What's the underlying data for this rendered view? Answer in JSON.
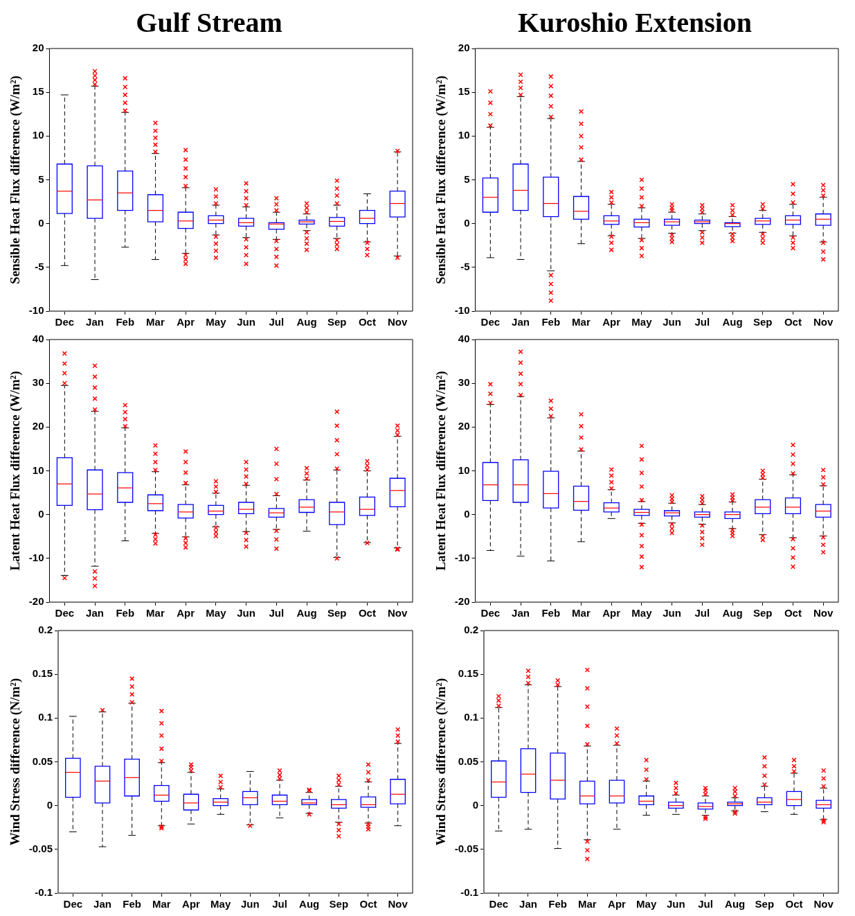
{
  "chart_data": [
    {
      "type": "box",
      "title": "Gulf Stream",
      "ylabel": "Sensible Heat Flux difference (W/m²)",
      "categories": [
        "Dec",
        "Jan",
        "Feb",
        "Mar",
        "Apr",
        "May",
        "Jun",
        "Jul",
        "Aug",
        "Sep",
        "Oct",
        "Nov"
      ],
      "color": "#0000ff",
      "marker": "cross",
      "ylim": [
        -10,
        20
      ],
      "yticks": [
        -10,
        -5,
        0,
        5,
        10,
        15,
        20
      ],
      "grid": false,
      "boxes": [
        {
          "low": -4.8,
          "q1": 1.15,
          "median": 3.7,
          "q3": 6.8,
          "high": 14.7
        },
        {
          "low": -6.4,
          "q1": 0.6,
          "median": 2.7,
          "q3": 6.6,
          "high": 15.7,
          "outliers": [
            15.9,
            16.4,
            16.9,
            17.4
          ]
        },
        {
          "low": -2.7,
          "q1": 1.5,
          "median": 3.5,
          "q3": 6.0,
          "high": 12.7,
          "outliers": [
            12.9,
            13.8,
            14.7,
            15.6,
            16.6
          ]
        },
        {
          "low": -4.1,
          "q1": 0.2,
          "median": 1.5,
          "q3": 3.3,
          "high": 8.0,
          "outliers": [
            8.2,
            9.0,
            9.8,
            10.6,
            11.5
          ]
        },
        {
          "low": -3.4,
          "q1": -0.55,
          "median": 0.3,
          "q3": 1.3,
          "high": 4.1,
          "outliers": [
            4.3,
            5.3,
            6.3,
            7.3,
            8.4,
            -3.6,
            -4.1,
            -4.6
          ]
        },
        {
          "low": -1.3,
          "q1": 0.0,
          "median": 0.4,
          "q3": 0.9,
          "high": 2.1,
          "outliers": [
            2.3,
            3.1,
            3.9,
            -1.5,
            -2.3,
            -3.1,
            -3.9
          ]
        },
        {
          "low": -1.6,
          "q1": -0.3,
          "median": 0.1,
          "q3": 0.6,
          "high": 1.9,
          "outliers": [
            2.1,
            2.9,
            3.7,
            4.6,
            -1.8,
            -2.7,
            -3.6,
            -4.6
          ]
        },
        {
          "low": -1.8,
          "q1": -0.65,
          "median": -0.05,
          "q3": 0.1,
          "high": 1.3,
          "outliers": [
            1.5,
            2.2,
            2.9,
            -2.0,
            -2.9,
            -3.8,
            -4.8
          ]
        },
        {
          "low": -0.8,
          "q1": -0.05,
          "median": 0.2,
          "q3": 0.4,
          "high": 1.1,
          "outliers": [
            1.3,
            1.8,
            2.3,
            -1.0,
            -1.7,
            -2.3,
            -3.0
          ]
        },
        {
          "low": -1.7,
          "q1": -0.3,
          "median": 0.25,
          "q3": 0.7,
          "high": 2.1,
          "outliers": [
            2.3,
            3.2,
            4.0,
            4.9,
            -1.9,
            -2.4,
            -2.9
          ]
        },
        {
          "low": -2.1,
          "q1": 0.0,
          "median": 0.6,
          "q3": 1.5,
          "high": 3.4,
          "outliers": [
            -2.2,
            -2.9,
            -3.6
          ]
        },
        {
          "low": -3.7,
          "q1": 0.75,
          "median": 2.3,
          "q3": 3.7,
          "high": 8.2,
          "outliers": [
            8.3,
            -3.9
          ]
        }
      ]
    },
    {
      "type": "box",
      "title": "Kuroshio Extension",
      "ylabel": "Sensible Heat Flux difference (W/m²)",
      "categories": [
        "Dec",
        "Jan",
        "Feb",
        "Mar",
        "Apr",
        "May",
        "Jun",
        "Jul",
        "Aug",
        "Sep",
        "Oct",
        "Nov"
      ],
      "color": "#0000ff",
      "marker": "cross",
      "ylim": [
        -10,
        20
      ],
      "yticks": [
        -10,
        -5,
        0,
        5,
        10,
        15,
        20
      ],
      "grid": false,
      "boxes": [
        {
          "low": -3.9,
          "q1": 1.3,
          "median": 3.0,
          "q3": 5.2,
          "high": 11.0,
          "outliers": [
            11.2,
            12.5,
            13.8,
            15.1
          ]
        },
        {
          "low": -4.1,
          "q1": 1.5,
          "median": 3.8,
          "q3": 6.8,
          "high": 14.5,
          "outliers": [
            14.7,
            15.5,
            16.2,
            17.0
          ]
        },
        {
          "low": -5.4,
          "q1": 0.8,
          "median": 2.3,
          "q3": 5.3,
          "high": 12.0,
          "outliers": [
            12.2,
            13.4,
            14.6,
            15.7,
            16.8,
            -5.9,
            -6.9,
            -7.9,
            -8.8
          ]
        },
        {
          "low": -2.3,
          "q1": 0.5,
          "median": 1.4,
          "q3": 3.1,
          "high": 7.1,
          "outliers": [
            7.3,
            8.7,
            10.0,
            11.4,
            12.8
          ]
        },
        {
          "low": -1.4,
          "q1": -0.1,
          "median": 0.3,
          "q3": 0.9,
          "high": 2.2,
          "outliers": [
            2.4,
            3.0,
            3.6,
            -1.5,
            -2.2,
            -3.0
          ]
        },
        {
          "low": -1.7,
          "q1": -0.4,
          "median": 0.1,
          "q3": 0.5,
          "high": 1.8,
          "outliers": [
            2.0,
            3.0,
            4.0,
            5.0,
            -1.9,
            -2.8,
            -3.7
          ]
        },
        {
          "low": -1.1,
          "q1": -0.2,
          "median": 0.2,
          "q3": 0.5,
          "high": 1.3,
          "outliers": [
            1.5,
            1.8,
            2.2,
            -1.3,
            -1.7,
            -2.1
          ]
        },
        {
          "low": -0.8,
          "q1": 0.0,
          "median": 0.2,
          "q3": 0.4,
          "high": 1.1,
          "outliers": [
            1.3,
            1.7,
            2.1,
            -1.0,
            -1.6,
            -2.2
          ]
        },
        {
          "low": -1.1,
          "q1": -0.35,
          "median": 0.0,
          "q3": 0.1,
          "high": 0.8,
          "outliers": [
            1.0,
            1.5,
            2.1,
            -1.2,
            -1.6,
            -2.0
          ]
        },
        {
          "low": -1.0,
          "q1": -0.1,
          "median": 0.3,
          "q3": 0.6,
          "high": 1.5,
          "outliers": [
            1.7,
            2.2,
            -1.2,
            -1.7,
            -2.2
          ]
        },
        {
          "low": -1.4,
          "q1": -0.1,
          "median": 0.4,
          "q3": 0.9,
          "high": 2.2,
          "outliers": [
            2.4,
            3.4,
            4.5,
            -1.6,
            -2.2,
            -2.8
          ]
        },
        {
          "low": -2.1,
          "q1": -0.2,
          "median": 0.5,
          "q3": 1.1,
          "high": 3.0,
          "outliers": [
            3.2,
            3.8,
            4.4,
            -2.2,
            -3.2,
            -4.1
          ]
        }
      ]
    },
    {
      "type": "box",
      "ylabel": "Latent Heat Flux difference (W/m²)",
      "categories": [
        "Dec",
        "Jan",
        "Feb",
        "Mar",
        "Apr",
        "May",
        "Jun",
        "Jul",
        "Aug",
        "Sep",
        "Oct",
        "Nov"
      ],
      "color": "#0000ff",
      "marker": "cross",
      "ylim": [
        -20,
        40
      ],
      "yticks": [
        -20,
        -10,
        0,
        10,
        20,
        30,
        40
      ],
      "grid": false,
      "boxes": [
        {
          "low": -13.9,
          "q1": 2.1,
          "median": 7.0,
          "q3": 13.0,
          "high": 29.5,
          "outliers": [
            30.0,
            32.3,
            34.5,
            36.8,
            -14.5
          ]
        },
        {
          "low": -11.8,
          "q1": 1.1,
          "median": 4.7,
          "q3": 10.2,
          "high": 23.6,
          "outliers": [
            24.0,
            26.5,
            29.0,
            31.5,
            34.0,
            -13.0,
            -14.6,
            -16.3
          ]
        },
        {
          "low": -6.0,
          "q1": 2.8,
          "median": 6.1,
          "q3": 9.6,
          "high": 19.8,
          "outliers": [
            20.2,
            21.8,
            23.4,
            25.0
          ]
        },
        {
          "low": -4.3,
          "q1": 0.9,
          "median": 2.5,
          "q3": 4.5,
          "high": 9.8,
          "outliers": [
            10.2,
            12.0,
            13.9,
            15.8,
            -4.6,
            -5.6,
            -6.6
          ]
        },
        {
          "low": -5.1,
          "q1": -0.8,
          "median": 0.6,
          "q3": 2.3,
          "high": 6.8,
          "outliers": [
            7.2,
            9.6,
            12.0,
            14.4,
            -5.4,
            -6.5,
            -7.5
          ]
        },
        {
          "low": -2.8,
          "q1": 0.0,
          "median": 0.8,
          "q3": 2.1,
          "high": 4.9,
          "outliers": [
            5.2,
            6.4,
            7.6,
            -3.0,
            -4.0,
            -4.9
          ]
        },
        {
          "low": -3.9,
          "q1": 0.2,
          "median": 1.2,
          "q3": 2.8,
          "high": 6.7,
          "outliers": [
            7.0,
            8.7,
            10.3,
            12.0,
            -4.2,
            -5.8,
            -7.3
          ]
        },
        {
          "low": -3.4,
          "q1": -0.6,
          "median": 0.4,
          "q3": 1.4,
          "high": 4.3,
          "outliers": [
            4.7,
            8.1,
            11.6,
            15.0,
            -3.7,
            -5.7,
            -7.8
          ]
        },
        {
          "low": -3.8,
          "q1": 0.5,
          "median": 1.7,
          "q3": 3.4,
          "high": 7.9,
          "outliers": [
            8.2,
            9.4,
            10.6
          ]
        },
        {
          "low": -9.8,
          "q1": -2.3,
          "median": 0.6,
          "q3": 2.8,
          "high": 10.2,
          "outliers": [
            10.5,
            13.8,
            17.0,
            20.3,
            23.5,
            -10.0
          ]
        },
        {
          "low": -6.4,
          "q1": -0.2,
          "median": 1.2,
          "q3": 4.0,
          "high": 10.0,
          "outliers": [
            10.3,
            11.2,
            12.2,
            -6.5
          ]
        },
        {
          "low": -7.6,
          "q1": 1.8,
          "median": 5.5,
          "q3": 8.3,
          "high": 17.9,
          "outliers": [
            18.2,
            19.2,
            20.3,
            -7.8,
            -8.0
          ]
        }
      ]
    },
    {
      "type": "box",
      "ylabel": "Latent Heat Flux difference (W/m²)",
      "categories": [
        "Dec",
        "Jan",
        "Feb",
        "Mar",
        "Apr",
        "May",
        "Jun",
        "Jul",
        "Aug",
        "Sep",
        "Oct",
        "Nov"
      ],
      "color": "#0000ff",
      "marker": "cross",
      "ylim": [
        -20,
        40
      ],
      "yticks": [
        -20,
        -10,
        0,
        10,
        20,
        30,
        40
      ],
      "grid": false,
      "boxes": [
        {
          "low": -8.2,
          "q1": 3.2,
          "median": 6.8,
          "q3": 11.9,
          "high": 25.2,
          "outliers": [
            25.5,
            27.6,
            29.8
          ]
        },
        {
          "low": -9.5,
          "q1": 2.8,
          "median": 6.8,
          "q3": 12.5,
          "high": 27.0,
          "outliers": [
            27.3,
            29.8,
            32.2,
            34.7,
            37.2
          ]
        },
        {
          "low": -10.6,
          "q1": 1.5,
          "median": 4.8,
          "q3": 9.9,
          "high": 22.1,
          "outliers": [
            22.5,
            24.2,
            26.0
          ]
        },
        {
          "low": -6.2,
          "q1": 1.0,
          "median": 3.0,
          "q3": 6.5,
          "high": 14.5,
          "outliers": [
            14.9,
            17.6,
            20.2,
            22.9
          ]
        },
        {
          "low": -0.9,
          "q1": 0.6,
          "median": 1.5,
          "q3": 2.7,
          "high": 5.7,
          "outliers": [
            6.0,
            7.4,
            8.9,
            10.3
          ]
        },
        {
          "low": -2.0,
          "q1": -0.2,
          "median": 0.5,
          "q3": 1.2,
          "high": 3.0,
          "outliers": [
            3.3,
            6.4,
            9.5,
            12.6,
            15.7,
            -2.3,
            -4.7,
            -7.2,
            -9.6,
            -12.0
          ]
        },
        {
          "low": -1.9,
          "q1": -0.3,
          "median": 0.4,
          "q3": 0.9,
          "high": 2.6,
          "outliers": [
            2.9,
            3.6,
            4.4,
            -2.2,
            -3.2,
            -4.2
          ]
        },
        {
          "low": -2.2,
          "q1": -0.6,
          "median": 0.0,
          "q3": 0.6,
          "high": 2.3,
          "outliers": [
            2.6,
            3.4,
            4.2,
            -2.5,
            -4.0,
            -5.4,
            -6.9
          ]
        },
        {
          "low": -3.2,
          "q1": -0.9,
          "median": 0.0,
          "q3": 0.6,
          "high": 2.9,
          "outliers": [
            3.2,
            3.9,
            4.6,
            -3.5,
            -4.2,
            -4.9
          ]
        },
        {
          "low": -4.6,
          "q1": 0.2,
          "median": 1.7,
          "q3": 3.4,
          "high": 8.1,
          "outliers": [
            8.4,
            9.2,
            10.0,
            -4.9,
            -5.8
          ]
        },
        {
          "low": -5.3,
          "q1": 0.2,
          "median": 1.7,
          "q3": 3.8,
          "high": 9.1,
          "outliers": [
            9.4,
            11.6,
            13.7,
            15.9,
            -5.6,
            -7.7,
            -9.8,
            -11.9
          ]
        },
        {
          "low": -4.9,
          "q1": -0.6,
          "median": 0.8,
          "q3": 2.3,
          "high": 6.6,
          "outliers": [
            6.9,
            8.5,
            10.2,
            -5.2,
            -6.9,
            -8.6
          ]
        }
      ]
    },
    {
      "type": "box",
      "ylabel": "Wind Stress difference (N/m²)",
      "categories": [
        "Dec",
        "Jan",
        "Feb",
        "Mar",
        "Apr",
        "May",
        "Jun",
        "Jul",
        "Aug",
        "Sep",
        "Oct",
        "Nov"
      ],
      "color": "#0000ff",
      "marker": "cross",
      "ylim": [
        -0.1,
        0.2
      ],
      "yticks": [
        -0.1,
        -0.05,
        0,
        0.05,
        0.1,
        0.15,
        0.2
      ],
      "grid": false,
      "boxes": [
        {
          "low": -0.03,
          "q1": 0.0095,
          "median": 0.038,
          "q3": 0.054,
          "high": 0.102
        },
        {
          "low": -0.047,
          "q1": 0.003,
          "median": 0.028,
          "q3": 0.045,
          "high": 0.107,
          "outliers": [
            0.109
          ]
        },
        {
          "low": -0.034,
          "q1": 0.011,
          "median": 0.032,
          "q3": 0.053,
          "high": 0.117,
          "outliers": [
            0.118,
            0.127,
            0.136,
            0.145
          ]
        },
        {
          "low": -0.023,
          "q1": 0.005,
          "median": 0.012,
          "q3": 0.023,
          "high": 0.049,
          "outliers": [
            0.051,
            0.065,
            0.08,
            0.094,
            0.108,
            -0.024,
            -0.026
          ]
        },
        {
          "low": -0.021,
          "q1": -0.005,
          "median": 0.003,
          "q3": 0.013,
          "high": 0.038,
          "outliers": [
            0.04,
            0.044,
            0.047
          ]
        },
        {
          "low": -0.01,
          "q1": 0.0,
          "median": 0.004,
          "q3": 0.008,
          "high": 0.019,
          "outliers": [
            0.021,
            0.027,
            0.034
          ]
        },
        {
          "low": -0.022,
          "q1": 0.001,
          "median": 0.009,
          "q3": 0.016,
          "high": 0.039,
          "outliers": [
            -0.023
          ]
        },
        {
          "low": -0.014,
          "q1": 0.001,
          "median": 0.005,
          "q3": 0.012,
          "high": 0.029,
          "outliers": [
            0.031,
            0.035,
            0.04
          ]
        },
        {
          "low": -0.009,
          "q1": 0.001,
          "median": 0.003,
          "q3": 0.007,
          "high": 0.015,
          "outliers": [
            0.017,
            0.018,
            -0.01
          ]
        },
        {
          "low": -0.019,
          "q1": -0.003,
          "median": 0.001,
          "q3": 0.007,
          "high": 0.022,
          "outliers": [
            0.024,
            0.029,
            0.034,
            -0.021,
            -0.028,
            -0.035
          ]
        },
        {
          "low": -0.02,
          "q1": -0.002,
          "median": 0.001,
          "q3": 0.01,
          "high": 0.027,
          "outliers": [
            0.029,
            0.038,
            0.047,
            -0.021,
            -0.024,
            -0.027
          ]
        },
        {
          "low": -0.023,
          "q1": 0.002,
          "median": 0.013,
          "q3": 0.03,
          "high": 0.071,
          "outliers": [
            0.073,
            0.08,
            0.087
          ]
        }
      ]
    },
    {
      "type": "box",
      "ylabel": "Wind Stress difference (N/m²)",
      "categories": [
        "Dec",
        "Jan",
        "Feb",
        "Mar",
        "Apr",
        "May",
        "Jun",
        "Jul",
        "Aug",
        "Sep",
        "Oct",
        "Nov"
      ],
      "color": "#0000ff",
      "marker": "cross",
      "ylim": [
        -0.1,
        0.2
      ],
      "yticks": [
        -0.1,
        -0.05,
        0,
        0.05,
        0.1,
        0.15,
        0.2
      ],
      "grid": false,
      "boxes": [
        {
          "low": -0.029,
          "q1": 0.0095,
          "median": 0.027,
          "q3": 0.051,
          "high": 0.112,
          "outliers": [
            0.114,
            0.12,
            0.125
          ]
        },
        {
          "low": -0.027,
          "q1": 0.015,
          "median": 0.036,
          "q3": 0.065,
          "high": 0.138,
          "outliers": [
            0.14,
            0.147,
            0.154
          ]
        },
        {
          "low": -0.049,
          "q1": 0.0075,
          "median": 0.029,
          "q3": 0.06,
          "high": 0.136,
          "outliers": [
            0.138,
            0.143
          ]
        },
        {
          "low": -0.039,
          "q1": 0.002,
          "median": 0.011,
          "q3": 0.028,
          "high": 0.068,
          "outliers": [
            0.07,
            0.091,
            0.113,
            0.134,
            0.155,
            -0.041,
            -0.051,
            -0.061
          ]
        },
        {
          "low": -0.027,
          "q1": 0.003,
          "median": 0.011,
          "q3": 0.029,
          "high": 0.069,
          "outliers": [
            0.071,
            0.08,
            0.088
          ]
        },
        {
          "low": -0.011,
          "q1": 0.001,
          "median": 0.005,
          "q3": 0.011,
          "high": 0.028,
          "outliers": [
            0.03,
            0.041,
            0.052
          ]
        },
        {
          "low": -0.01,
          "q1": -0.003,
          "median": 0.0,
          "q3": 0.004,
          "high": 0.012,
          "outliers": [
            0.014,
            0.02,
            0.026
          ]
        },
        {
          "low": -0.011,
          "q1": -0.004,
          "median": -0.001,
          "q3": 0.003,
          "high": 0.011,
          "outliers": [
            0.013,
            0.017,
            0.02,
            -0.013,
            -0.015
          ]
        },
        {
          "low": -0.006,
          "q1": 0.0,
          "median": 0.002,
          "q3": 0.004,
          "high": 0.009,
          "outliers": [
            0.011,
            0.016,
            0.02,
            -0.007,
            -0.009
          ]
        },
        {
          "low": -0.007,
          "q1": 0.001,
          "median": 0.004,
          "q3": 0.009,
          "high": 0.022,
          "outliers": [
            0.024,
            0.034,
            0.045,
            0.055
          ]
        },
        {
          "low": -0.01,
          "q1": 0.0,
          "median": 0.007,
          "q3": 0.016,
          "high": 0.037,
          "outliers": [
            0.039,
            0.045,
            0.052
          ]
        },
        {
          "low": -0.016,
          "q1": -0.003,
          "median": 0.001,
          "q3": 0.006,
          "high": 0.02,
          "outliers": [
            0.022,
            0.031,
            0.04,
            -0.017,
            -0.019
          ]
        }
      ]
    }
  ]
}
